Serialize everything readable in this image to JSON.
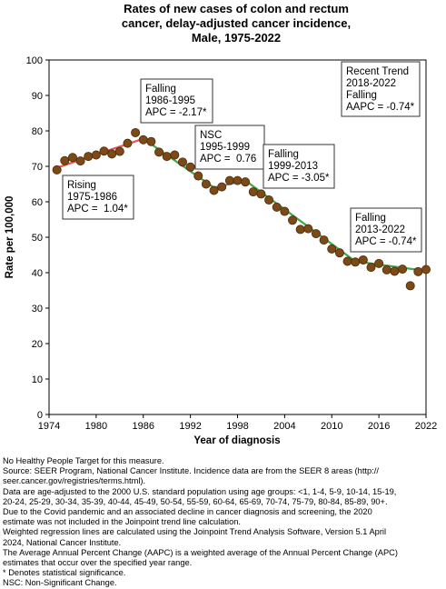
{
  "chart_data": {
    "type": "scatter",
    "title_lines": [
      "Rates of new cases of colon and rectum",
      "cancer, delay-adjusted cancer incidence,",
      "Male,  1975-2022"
    ],
    "xlabel": "Year of diagnosis",
    "ylabel": "Rate per 100,000",
    "xlim": [
      1974,
      2022
    ],
    "ylim": [
      0,
      100
    ],
    "xticks": [
      "1974",
      "1980",
      "1986",
      "1992",
      "1998",
      "2004",
      "2010",
      "2016",
      "2022"
    ],
    "yticks": [
      "0",
      "10",
      "20",
      "30",
      "40",
      "50",
      "60",
      "70",
      "80",
      "90",
      "100"
    ],
    "grid": false,
    "point_color": "#7b4a16",
    "points": [
      {
        "x": 1975,
        "y": 69.0
      },
      {
        "x": 1976,
        "y": 71.6
      },
      {
        "x": 1977,
        "y": 72.5
      },
      {
        "x": 1978,
        "y": 71.5
      },
      {
        "x": 1979,
        "y": 72.8
      },
      {
        "x": 1980,
        "y": 73.2
      },
      {
        "x": 1981,
        "y": 74.3
      },
      {
        "x": 1982,
        "y": 73.5
      },
      {
        "x": 1983,
        "y": 74.2
      },
      {
        "x": 1984,
        "y": 76.5
      },
      {
        "x": 1985,
        "y": 79.5
      },
      {
        "x": 1986,
        "y": 77.5
      },
      {
        "x": 1987,
        "y": 77.0
      },
      {
        "x": 1988,
        "y": 74.0
      },
      {
        "x": 1989,
        "y": 72.8
      },
      {
        "x": 1990,
        "y": 73.2
      },
      {
        "x": 1991,
        "y": 71.2
      },
      {
        "x": 1992,
        "y": 69.8
      },
      {
        "x": 1993,
        "y": 67.3
      },
      {
        "x": 1994,
        "y": 65.0
      },
      {
        "x": 1995,
        "y": 63.2
      },
      {
        "x": 1996,
        "y": 64.2
      },
      {
        "x": 1997,
        "y": 66.0
      },
      {
        "x": 1998,
        "y": 66.0
      },
      {
        "x": 1999,
        "y": 65.6
      },
      {
        "x": 2000,
        "y": 62.8
      },
      {
        "x": 2001,
        "y": 62.2
      },
      {
        "x": 2002,
        "y": 60.5
      },
      {
        "x": 2003,
        "y": 58.5
      },
      {
        "x": 2004,
        "y": 57.3
      },
      {
        "x": 2005,
        "y": 54.8
      },
      {
        "x": 2006,
        "y": 52.2
      },
      {
        "x": 2007,
        "y": 52.4
      },
      {
        "x": 2008,
        "y": 51.0
      },
      {
        "x": 2009,
        "y": 49.2
      },
      {
        "x": 2010,
        "y": 46.7
      },
      {
        "x": 2011,
        "y": 45.6
      },
      {
        "x": 2012,
        "y": 43.2
      },
      {
        "x": 2013,
        "y": 43.0
      },
      {
        "x": 2014,
        "y": 43.6
      },
      {
        "x": 2015,
        "y": 41.5
      },
      {
        "x": 2016,
        "y": 42.6
      },
      {
        "x": 2017,
        "y": 40.8
      },
      {
        "x": 2018,
        "y": 40.4
      },
      {
        "x": 2019,
        "y": 41.0
      },
      {
        "x": 2020,
        "y": 36.3
      },
      {
        "x": 2021,
        "y": 40.3
      },
      {
        "x": 2022,
        "y": 40.9
      }
    ],
    "trend_segments": [
      {
        "color": "#e8575a",
        "x": [
          1975,
          1986
        ],
        "y": [
          69.6,
          77.8
        ]
      },
      {
        "color": "#3daa48",
        "x": [
          1986,
          1995
        ],
        "y": [
          77.8,
          64.0
        ]
      },
      {
        "color": "#5b8fd4",
        "x": [
          1995,
          1999
        ],
        "y": [
          64.0,
          66.0
        ]
      },
      {
        "color": "#3daa48",
        "x": [
          1999,
          2013
        ],
        "y": [
          66.0,
          43.2
        ]
      },
      {
        "color": "#3daa48",
        "x": [
          2013,
          2022
        ],
        "y": [
          43.2,
          40.5
        ]
      }
    ],
    "annotations": [
      {
        "lines": [
          "Rising",
          "1975-1986",
          "APC =  1.04*"
        ],
        "boxed": true
      },
      {
        "lines": [
          "Falling",
          "1986-1995",
          "APC = -2.17*"
        ],
        "boxed": true
      },
      {
        "lines": [
          "NSC",
          "1995-1999",
          "APC =  0.76"
        ],
        "boxed": true
      },
      {
        "lines": [
          "Falling",
          "1999-2013",
          "APC = -3.05*"
        ],
        "boxed": true
      },
      {
        "lines": [
          "Falling",
          "2013-2022",
          "APC = -0.74*"
        ],
        "boxed": true
      },
      {
        "lines": [
          "Recent Trend",
          "2018-2022",
          "Falling",
          "AAPC = -0.74*"
        ],
        "boxed": true
      }
    ]
  },
  "notes": [
    "No Healthy People Target for this measure.",
    "Source: SEER Program, National Cancer Institute. Incidence data are from the SEER 8 areas (http://",
    "seer.cancer.gov/registries/terms.html).",
    "Data are age-adjusted to the 2000 U.S. standard population using age groups: <1, 1-4, 5-9, 10-14, 15-19,",
    "20-24, 25-29, 30-34, 35-39, 40-44, 45-49, 50-54, 55-59, 60-64, 65-69, 70-74, 75-79, 80-84, 85-89, 90+.",
    "Due to the Covid pandemic and an associated decline in cancer diagnosis and screening, the 2020",
    "estimate was not included in the Joinpoint trend line calculation.",
    "Weighted regression lines are calculated using the Joinpoint Trend Analysis Software, Version 5.1 April",
    "2024, National Cancer Institute.",
    "The Average Annual Percent Change (AAPC) is a weighted average of the Annual Percent Change (APC)",
    "estimates that occur over the specified year range.",
    "* Denotes statistical significance.",
    "NSC: Non-Significant Change."
  ]
}
